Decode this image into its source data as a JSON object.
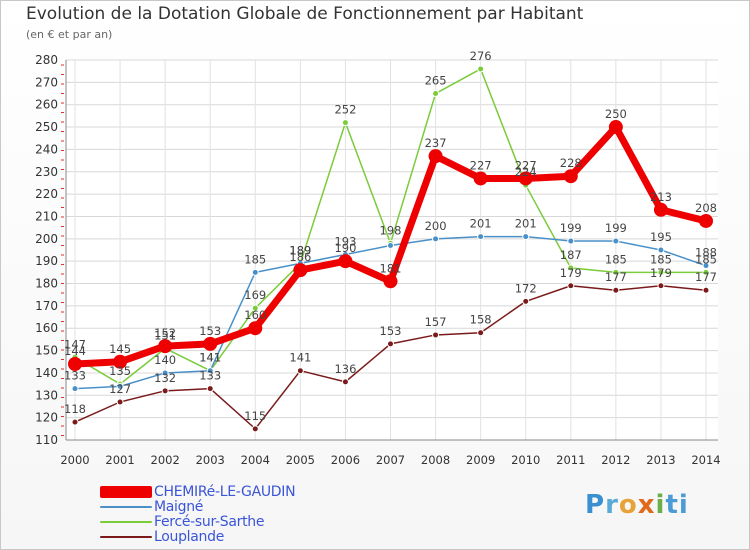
{
  "chart_data": {
    "type": "line",
    "title": "Evolution de la Dotation Globale de Fonctionnement par Habitant",
    "subtitle": "(en € et par an)",
    "x": [
      "2000",
      "2001",
      "2002",
      "2003",
      "2004",
      "2005",
      "2006",
      "2007",
      "2008",
      "2009",
      "2010",
      "2011",
      "2012",
      "2013",
      "2014"
    ],
    "ylim": [
      110,
      280
    ],
    "yticks": [
      110,
      120,
      130,
      140,
      150,
      160,
      170,
      180,
      190,
      200,
      210,
      220,
      230,
      240,
      250,
      260,
      270,
      280
    ],
    "grid": true,
    "legend_position": "bottom-left",
    "series": [
      {
        "name": "CHEMIRé-LE-GAUDIN",
        "color": "#ee0000",
        "values": [
          144,
          145,
          152,
          153,
          160,
          186,
          190,
          181,
          237,
          227,
          227,
          228,
          250,
          213,
          208
        ],
        "labels": [
          "144",
          "145",
          "152",
          "153",
          "160",
          "186",
          "190",
          "181",
          "237",
          "227",
          "227",
          "228",
          "250",
          "213",
          "208"
        ]
      },
      {
        "name": "Maigné",
        "color": "#4a90c8",
        "values": [
          133,
          134,
          140,
          141,
          185,
          189,
          193,
          197,
          200,
          201,
          201,
          199,
          199,
          195,
          188
        ],
        "labels": [
          "133",
          "",
          "140",
          "141",
          "185",
          "189",
          "193",
          "",
          "200",
          "201",
          "201",
          "199",
          "199",
          "195",
          "188"
        ]
      },
      {
        "name": "Fercé-sur-Sarthe",
        "color": "#7acc3a",
        "values": [
          147,
          135,
          151,
          141,
          169,
          189,
          252,
          198,
          265,
          276,
          224,
          187,
          185,
          185,
          185
        ],
        "labels": [
          "147",
          "135",
          "151",
          "141",
          "169",
          "189",
          "252",
          "198",
          "265",
          "276",
          "224",
          "187",
          "185",
          "185",
          "185"
        ]
      },
      {
        "name": "Louplande",
        "color": "#7a1a1a",
        "values": [
          118,
          127,
          132,
          133,
          115,
          141,
          136,
          153,
          157,
          158,
          172,
          179,
          177,
          179,
          177
        ],
        "labels": [
          "118",
          "127",
          "132",
          "133",
          "115",
          "141",
          "136",
          "153",
          "157",
          "158",
          "172",
          "179",
          "177",
          "179",
          "177"
        ]
      }
    ]
  },
  "brand": {
    "p": "P",
    "r": "r",
    "o": "o",
    "x": "x",
    "i": "i",
    "t": "ti"
  }
}
